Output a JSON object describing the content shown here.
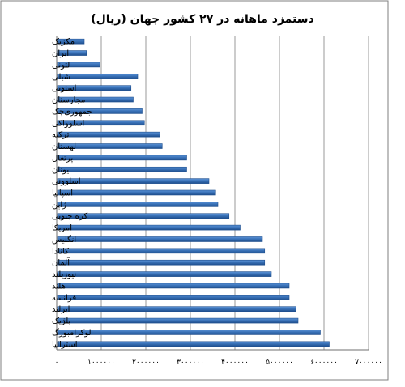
{
  "chart_data": {
    "type": "bar",
    "orientation": "horizontal",
    "title": "دستمزد ماهانه در ۲۷ کشور جهان (ریال)",
    "categories": [
      "مکزیک",
      "ایران",
      "لتونی",
      "شیلی",
      "استونی",
      "مجارستان",
      "جمهوری‌چک",
      "اسلوواکی",
      "ترکیه",
      "لهستان",
      "پرتغال",
      "یونان",
      "اسلوونی",
      "اسپانیا",
      "ژاپن",
      "کره جنوبی",
      "آمریکا",
      "انگلیس",
      "کانادا",
      "آلمان",
      "نیوزیلند",
      "هلند",
      "فرانسه",
      "ایرلند",
      "بلژیک",
      "لوکزامبورگ",
      "استرالیا"
    ],
    "values": [
      600000,
      650000,
      950000,
      1800000,
      1650000,
      1700000,
      1900000,
      1950000,
      2300000,
      2350000,
      2900000,
      2900000,
      3400000,
      3550000,
      3600000,
      3850000,
      4100000,
      4600000,
      4650000,
      4650000,
      4800000,
      5200000,
      5200000,
      5350000,
      5400000,
      5900000,
      6100000
    ],
    "xlim": [
      0,
      7000000
    ],
    "x_ticks": [
      "۰",
      "۱۰۰۰۰۰۰",
      "۲۰۰۰۰۰۰",
      "۳۰۰۰۰۰۰",
      "۴۰۰۰۰۰۰",
      "۵۰۰۰۰۰۰",
      "۶۰۰۰۰۰۰",
      "۷۰۰۰۰۰۰"
    ],
    "grid": "vertical",
    "bar_color": "#3A72B8",
    "bar_color_light": "#5B93D6",
    "bar_color_dark": "#1F4F8E"
  }
}
